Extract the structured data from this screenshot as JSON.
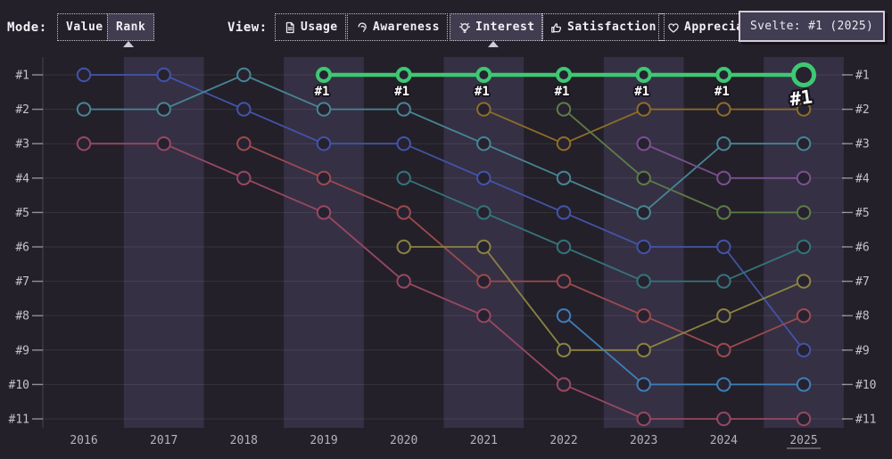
{
  "toolbar": {
    "mode_label": "Mode:",
    "mode_options": [
      {
        "label": "Value",
        "selected": false
      },
      {
        "label": "Rank",
        "selected": true
      }
    ],
    "view_label": "View:",
    "view_options": [
      {
        "label": "Usage",
        "icon": "document-icon",
        "selected": false
      },
      {
        "label": "Awareness",
        "icon": "ear-icon",
        "selected": false
      },
      {
        "label": "Interest",
        "icon": "lightbulb-icon",
        "selected": true
      },
      {
        "label": "Satisfaction",
        "icon": "thumbs-up-icon",
        "selected": false
      },
      {
        "label": "Appreciation",
        "icon": "heart-icon",
        "selected": false
      }
    ]
  },
  "tooltip": {
    "text": "Svelte: #1 (2025)"
  },
  "colors": {
    "background": "#242029",
    "stripe": "#363045",
    "selected_button_bg": "#413c4f",
    "tooltip_bg": "#413d52",
    "tooltip_border": "#d3ceda",
    "highlight_green": "#3ec873",
    "axis_text": "#c6c1cc",
    "year_text": "#b6b1bd"
  },
  "chart_data": {
    "type": "line",
    "subtype": "bump-rank-chart",
    "title": "",
    "xlabel": "",
    "ylabel": "",
    "x_categories": [
      "2016",
      "2017",
      "2018",
      "2019",
      "2020",
      "2021",
      "2022",
      "2023",
      "2024",
      "2025"
    ],
    "rank_axis_labels": [
      "#1",
      "#2",
      "#3",
      "#4",
      "#5",
      "#6",
      "#7",
      "#8",
      "#9",
      "#10",
      "#11"
    ],
    "rank_range": [
      1,
      11
    ],
    "grid": true,
    "hovered_category": "2025",
    "highlight_point_label": "#1",
    "series": [
      {
        "name": "royal-blue",
        "color": "#4254a8",
        "highlighted": false,
        "points": [
          [
            "2016",
            1
          ],
          [
            "2017",
            1
          ],
          [
            "2018",
            2
          ],
          [
            "2019",
            3
          ],
          [
            "2020",
            3
          ],
          [
            "2021",
            4
          ],
          [
            "2022",
            5
          ],
          [
            "2023",
            6
          ],
          [
            "2024",
            6
          ],
          [
            "2025",
            9
          ]
        ]
      },
      {
        "name": "teal",
        "color": "#478594",
        "highlighted": false,
        "points": [
          [
            "2016",
            2
          ],
          [
            "2017",
            2
          ],
          [
            "2018",
            1
          ],
          [
            "2019",
            2
          ],
          [
            "2020",
            2
          ],
          [
            "2021",
            3
          ],
          [
            "2022",
            4
          ],
          [
            "2023",
            5
          ],
          [
            "2024",
            3
          ],
          [
            "2025",
            3
          ]
        ]
      },
      {
        "name": "crimson",
        "color": "#974862",
        "highlighted": false,
        "points": [
          [
            "2016",
            3
          ],
          [
            "2017",
            3
          ],
          [
            "2018",
            4
          ],
          [
            "2019",
            5
          ],
          [
            "2020",
            7
          ],
          [
            "2021",
            8
          ],
          [
            "2022",
            10
          ],
          [
            "2023",
            11
          ],
          [
            "2024",
            11
          ],
          [
            "2025",
            11
          ]
        ]
      },
      {
        "name": "brick-red",
        "color": "#9c4a4e",
        "highlighted": false,
        "points": [
          [
            "2018",
            3
          ],
          [
            "2019",
            4
          ],
          [
            "2020",
            5
          ],
          [
            "2021",
            7
          ],
          [
            "2022",
            7
          ],
          [
            "2023",
            8
          ],
          [
            "2024",
            9
          ],
          [
            "2025",
            8
          ]
        ]
      },
      {
        "name": "dark-teal",
        "color": "#337579",
        "highlighted": false,
        "points": [
          [
            "2020",
            4
          ],
          [
            "2021",
            5
          ],
          [
            "2022",
            6
          ],
          [
            "2023",
            7
          ],
          [
            "2024",
            7
          ],
          [
            "2025",
            6
          ]
        ]
      },
      {
        "name": "olive",
        "color": "#8b8342",
        "highlighted": false,
        "points": [
          [
            "2020",
            6
          ],
          [
            "2021",
            6
          ],
          [
            "2022",
            9
          ],
          [
            "2023",
            9
          ],
          [
            "2024",
            8
          ],
          [
            "2025",
            7
          ]
        ]
      },
      {
        "name": "gold",
        "color": "#8d6d28",
        "highlighted": false,
        "points": [
          [
            "2021",
            2
          ],
          [
            "2022",
            3
          ],
          [
            "2023",
            2
          ],
          [
            "2024",
            2
          ],
          [
            "2025",
            2
          ]
        ]
      },
      {
        "name": "sage-green",
        "color": "#5d7c48",
        "highlighted": false,
        "points": [
          [
            "2022",
            2
          ],
          [
            "2023",
            4
          ],
          [
            "2024",
            5
          ],
          [
            "2025",
            5
          ]
        ]
      },
      {
        "name": "steel-blue",
        "color": "#3e7eb6",
        "highlighted": false,
        "points": [
          [
            "2022",
            8
          ],
          [
            "2023",
            10
          ],
          [
            "2024",
            10
          ],
          [
            "2025",
            10
          ]
        ]
      },
      {
        "name": "purple",
        "color": "#7b5090",
        "highlighted": false,
        "points": [
          [
            "2023",
            3
          ],
          [
            "2024",
            4
          ],
          [
            "2025",
            4
          ]
        ]
      },
      {
        "name": "svelte",
        "color": "#3ec873",
        "highlighted": true,
        "points": [
          [
            "2019",
            1
          ],
          [
            "2020",
            1
          ],
          [
            "2021",
            1
          ],
          [
            "2022",
            1
          ],
          [
            "2023",
            1
          ],
          [
            "2024",
            1
          ],
          [
            "2025",
            1
          ]
        ]
      }
    ]
  }
}
